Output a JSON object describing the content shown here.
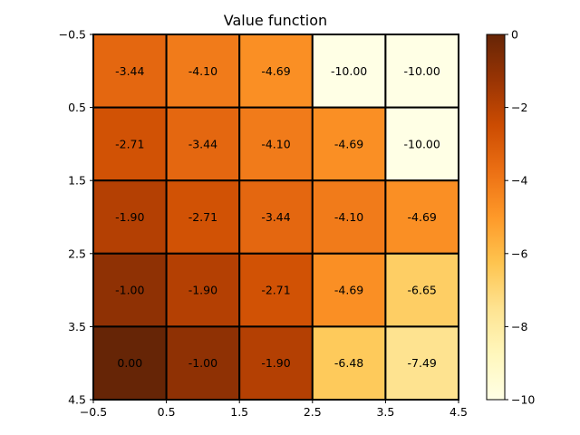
{
  "chart_data": {
    "type": "heatmap",
    "title": "Value function",
    "xlabel": "",
    "ylabel": "",
    "x_ticks": [
      "−0.5",
      "0.5",
      "1.5",
      "2.5",
      "3.5",
      "4.5"
    ],
    "y_ticks": [
      "−0.5",
      "0.5",
      "1.5",
      "2.5",
      "3.5",
      "4.5"
    ],
    "xlim": [
      -0.5,
      4.5
    ],
    "ylim": [
      4.5,
      -0.5
    ],
    "grid": true,
    "values": [
      [
        -3.44,
        -4.1,
        -4.69,
        -10.0,
        -10.0
      ],
      [
        -2.71,
        -3.44,
        -4.1,
        -4.69,
        -10.0
      ],
      [
        -1.9,
        -2.71,
        -3.44,
        -4.1,
        -4.69
      ],
      [
        -1.0,
        -1.9,
        -2.71,
        -4.69,
        -6.65
      ],
      [
        0.0,
        -1.0,
        -1.9,
        -6.48,
        -7.49
      ]
    ],
    "cell_labels": [
      [
        "-3.44",
        "-4.10",
        "-4.69",
        "-10.00",
        "-10.00"
      ],
      [
        "-2.71",
        "-3.44",
        "-4.10",
        "-4.69",
        "-10.00"
      ],
      [
        "-1.90",
        "-2.71",
        "-3.44",
        "-4.10",
        "-4.69"
      ],
      [
        "-1.00",
        "-1.90",
        "-2.71",
        "-4.69",
        "-6.65"
      ],
      [
        "0.00",
        "-1.00",
        "-1.90",
        "-6.48",
        "-7.49"
      ]
    ],
    "colorbar": {
      "min": -10,
      "max": 0,
      "ticks": [
        0,
        -2,
        -4,
        -6,
        -8,
        -10
      ],
      "tick_labels": [
        "0",
        "−2",
        "−4",
        "−6",
        "−8",
        "−10"
      ],
      "colormap": "YlOrBr",
      "color_stops": [
        "#ffffe5",
        "#fff7bc",
        "#fee391",
        "#fec44f",
        "#fe9929",
        "#ec7014",
        "#cc4c02",
        "#993404",
        "#662506"
      ]
    },
    "colors": {
      "cell_border": "#000000",
      "text": "#000000"
    }
  }
}
